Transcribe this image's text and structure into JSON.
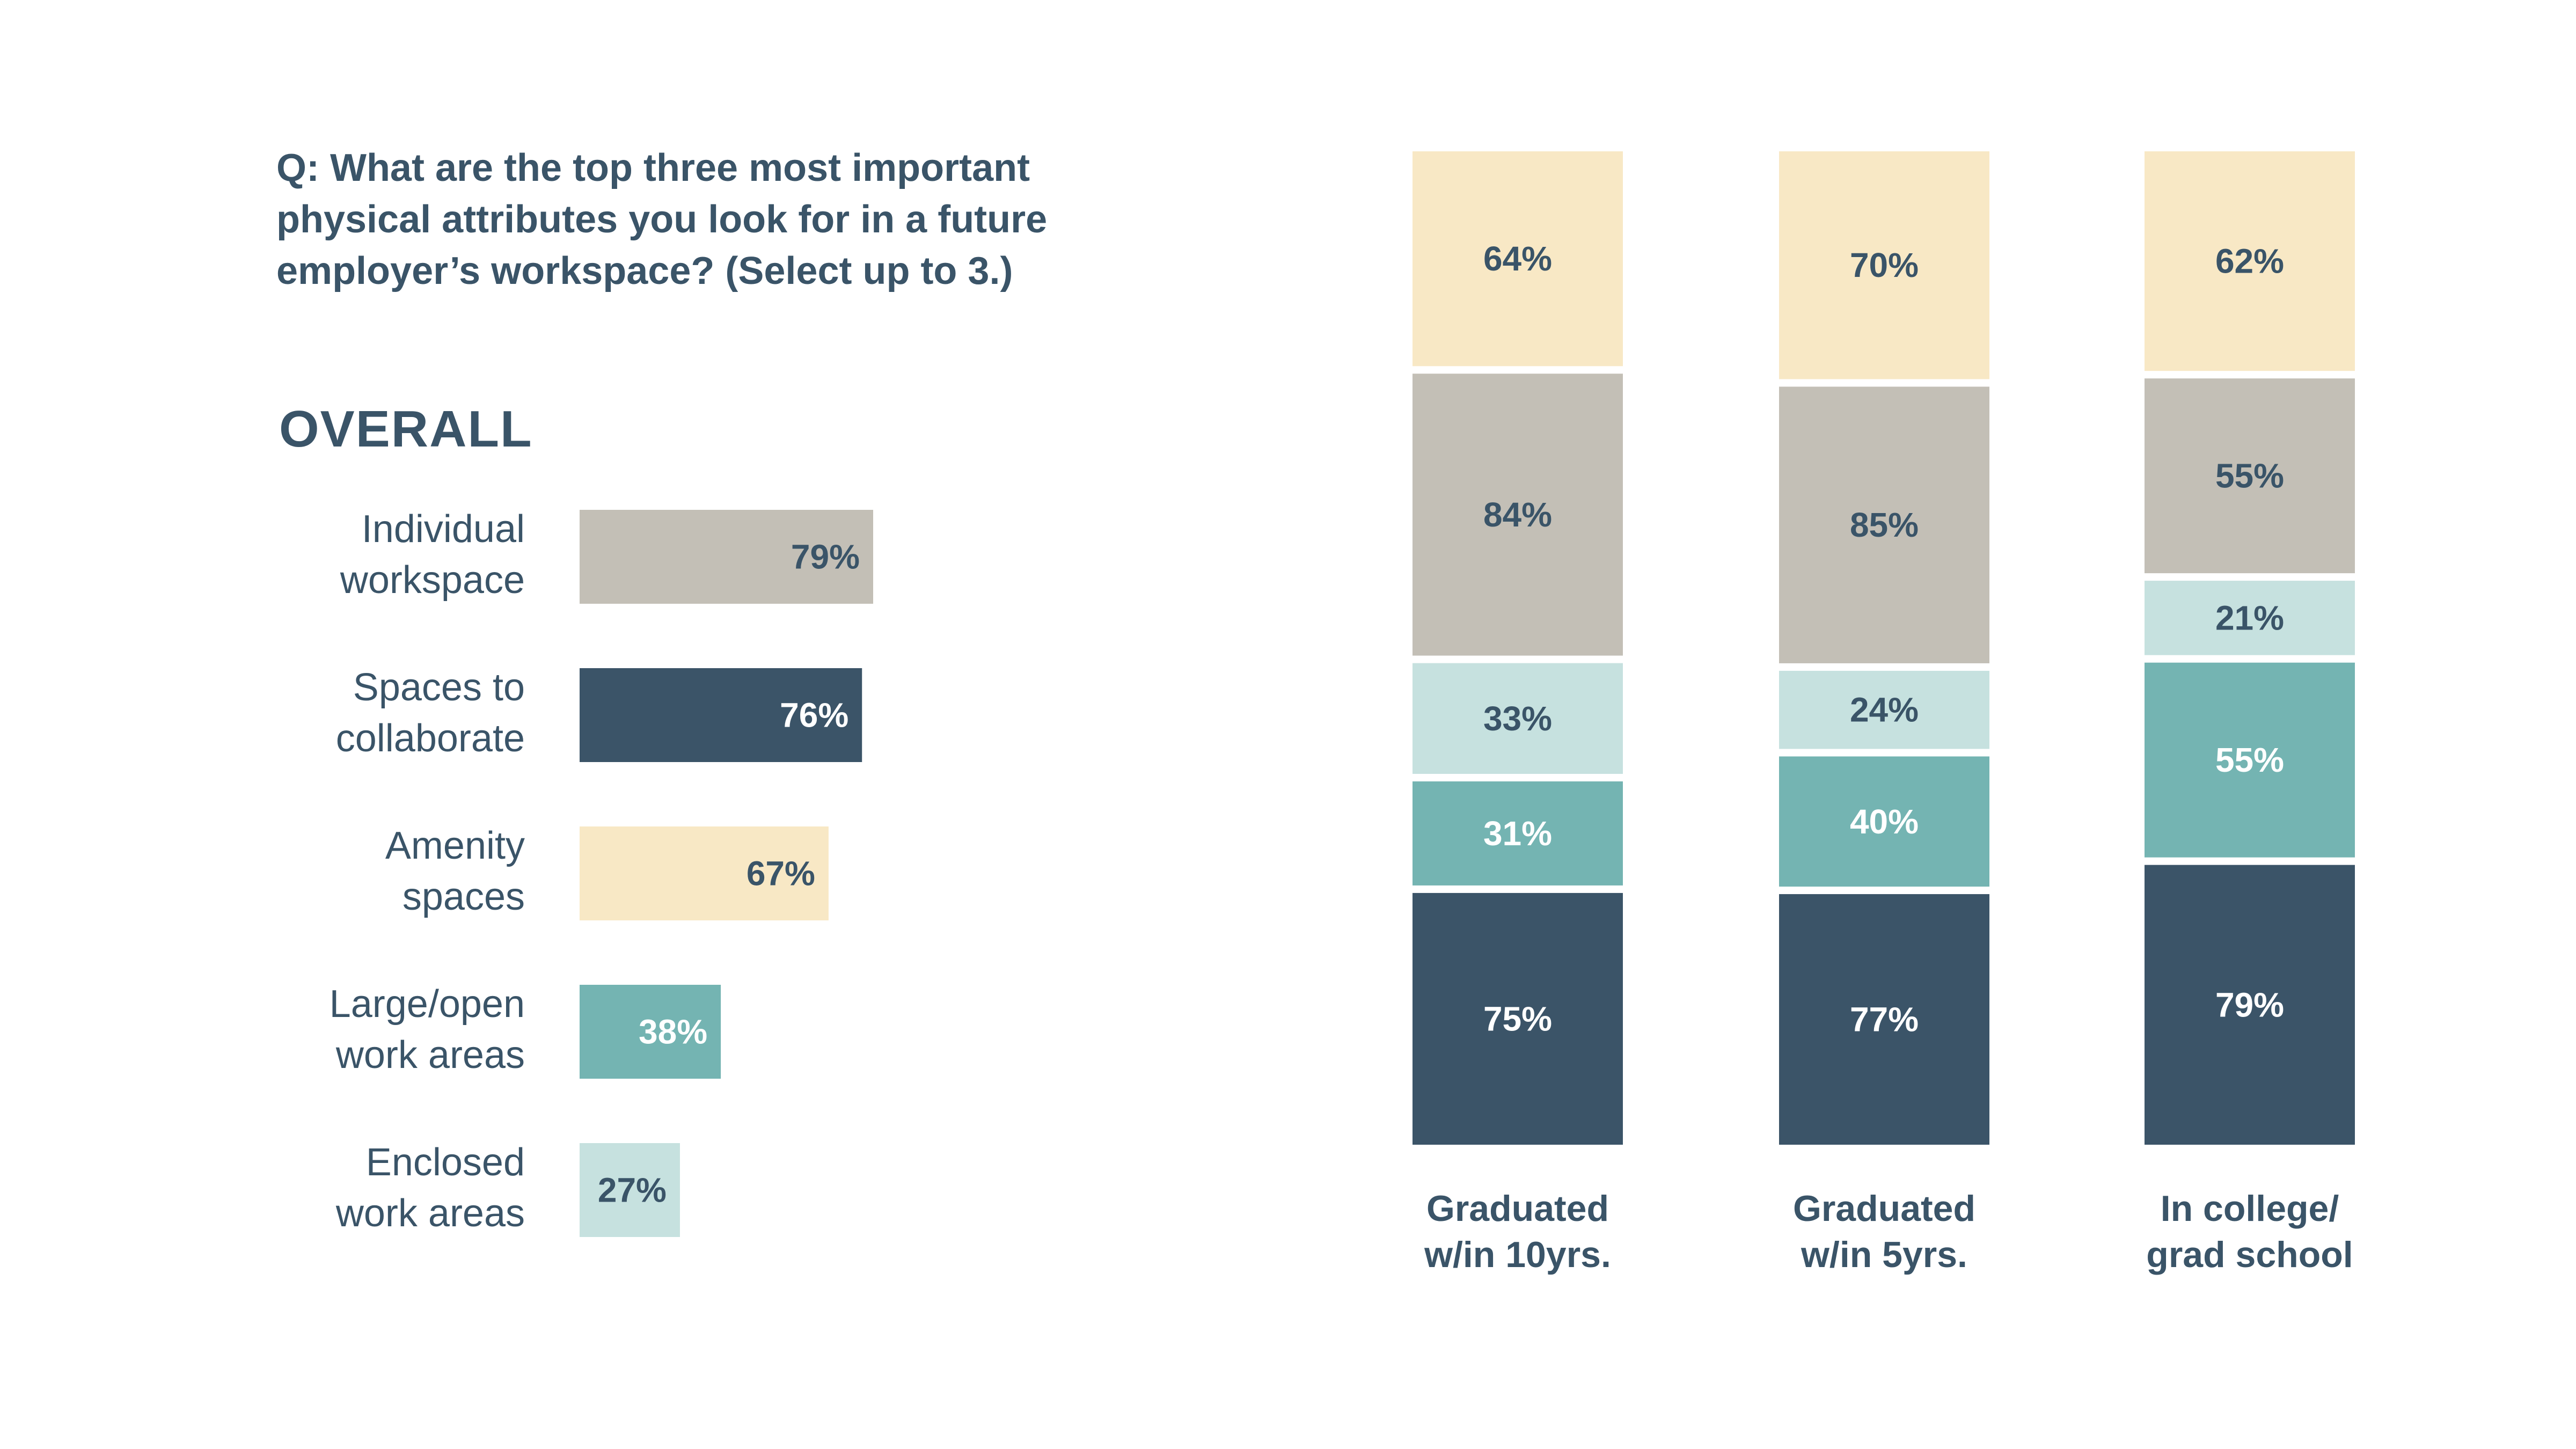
{
  "question": {
    "prefix": "Q:",
    "text": " What are the top three most important physical attributes you look for in a future employer’s workspace? (Select up to 3.)"
  },
  "overall_title": "OVERALL",
  "colors": {
    "Individual workspace": "#c3bfb6",
    "Spaces to collaborate": "#3b5468",
    "Amenity spaces": "#f8e8c5",
    "Large/open work areas": "#74b4b2",
    "Enclosed work areas": "#c6e1df",
    "dark_text": "#3a5468",
    "light_text": "#ffffff"
  },
  "chart_data": [
    {
      "type": "bar",
      "orientation": "horizontal",
      "title": "OVERALL",
      "categories": [
        [
          "Individual",
          "workspace"
        ],
        [
          "Spaces to",
          "collaborate"
        ],
        [
          "Amenity",
          "spaces"
        ],
        [
          "Large/open",
          "work areas"
        ],
        [
          "Enclosed",
          "work areas"
        ]
      ],
      "series_keys": [
        "Individual workspace",
        "Spaces to collaborate",
        "Amenity spaces",
        "Large/open work areas",
        "Enclosed work areas"
      ],
      "values": [
        79,
        76,
        67,
        38,
        27
      ],
      "value_labels": [
        "79%",
        "76%",
        "67%",
        "38%",
        "27%"
      ]
    },
    {
      "type": "bar",
      "stacked": true,
      "categories": [
        [
          "Graduated",
          "w/in 10yrs."
        ],
        [
          "Graduated",
          "w/in 5yrs."
        ],
        [
          "In college/",
          "grad school"
        ]
      ],
      "series": [
        {
          "key": "Amenity spaces",
          "values": [
            64,
            70,
            62
          ],
          "labels": [
            "64%",
            "70%",
            "62%"
          ]
        },
        {
          "key": "Individual workspace",
          "values": [
            84,
            85,
            55
          ],
          "labels": [
            "84%",
            "85%",
            "55%"
          ]
        },
        {
          "key": "Enclosed work areas",
          "values": [
            33,
            24,
            21
          ],
          "labels": [
            "33%",
            "24%",
            "21%"
          ]
        },
        {
          "key": "Large/open work areas",
          "values": [
            31,
            40,
            55
          ],
          "labels": [
            "31%",
            "40%",
            "55%"
          ]
        },
        {
          "key": "Spaces to collaborate",
          "values": [
            75,
            77,
            79
          ],
          "labels": [
            "75%",
            "77%",
            "79%"
          ]
        }
      ]
    }
  ]
}
